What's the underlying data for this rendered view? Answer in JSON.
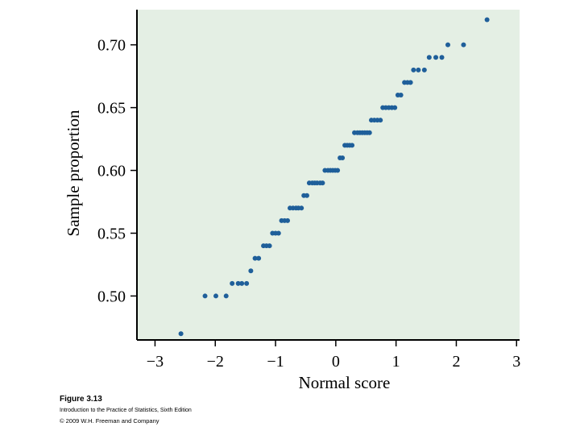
{
  "chart_data": {
    "type": "scatter",
    "xlabel": "Normal score",
    "ylabel": "Sample proportion",
    "xlim": [
      -3.3,
      3.05
    ],
    "ylim": [
      0.465,
      0.728
    ],
    "xticks": [
      -3,
      -2,
      -1,
      0,
      1,
      2,
      3
    ],
    "xtick_labels": [
      "−3",
      "−2",
      "−1",
      "0",
      "1",
      "2",
      "3"
    ],
    "yticks": [
      0.5,
      0.55,
      0.6,
      0.65,
      0.7
    ],
    "ytick_labels": [
      "0.50",
      "0.55",
      "0.60",
      "0.65",
      "0.70"
    ],
    "point_color": "#1f5f9a",
    "background_color": "#e4efe4",
    "points": [
      [
        -2.57,
        0.47
      ],
      [
        -2.17,
        0.5
      ],
      [
        -1.99,
        0.5
      ],
      [
        -1.82,
        0.5
      ],
      [
        -1.72,
        0.51
      ],
      [
        -1.62,
        0.51
      ],
      [
        -1.56,
        0.51
      ],
      [
        -1.48,
        0.51
      ],
      [
        -1.41,
        0.52
      ],
      [
        -1.34,
        0.53
      ],
      [
        -1.28,
        0.53
      ],
      [
        -1.2,
        0.54
      ],
      [
        -1.15,
        0.54
      ],
      [
        -1.1,
        0.54
      ],
      [
        -1.05,
        0.55
      ],
      [
        -1.0,
        0.55
      ],
      [
        -0.95,
        0.55
      ],
      [
        -0.9,
        0.56
      ],
      [
        -0.85,
        0.56
      ],
      [
        -0.8,
        0.56
      ],
      [
        -0.76,
        0.57
      ],
      [
        -0.71,
        0.57
      ],
      [
        -0.66,
        0.57
      ],
      [
        -0.62,
        0.57
      ],
      [
        -0.57,
        0.57
      ],
      [
        -0.53,
        0.58
      ],
      [
        -0.48,
        0.58
      ],
      [
        -0.44,
        0.59
      ],
      [
        -0.39,
        0.59
      ],
      [
        -0.35,
        0.59
      ],
      [
        -0.31,
        0.59
      ],
      [
        -0.26,
        0.59
      ],
      [
        -0.22,
        0.59
      ],
      [
        -0.18,
        0.6
      ],
      [
        -0.13,
        0.6
      ],
      [
        -0.09,
        0.6
      ],
      [
        -0.05,
        0.6
      ],
      [
        -0.01,
        0.6
      ],
      [
        0.03,
        0.6
      ],
      [
        0.07,
        0.61
      ],
      [
        0.11,
        0.61
      ],
      [
        0.15,
        0.62
      ],
      [
        0.19,
        0.62
      ],
      [
        0.23,
        0.62
      ],
      [
        0.27,
        0.62
      ],
      [
        0.31,
        0.63
      ],
      [
        0.36,
        0.63
      ],
      [
        0.4,
        0.63
      ],
      [
        0.44,
        0.63
      ],
      [
        0.48,
        0.63
      ],
      [
        0.52,
        0.63
      ],
      [
        0.56,
        0.63
      ],
      [
        0.59,
        0.64
      ],
      [
        0.64,
        0.64
      ],
      [
        0.69,
        0.64
      ],
      [
        0.74,
        0.64
      ],
      [
        0.78,
        0.65
      ],
      [
        0.83,
        0.65
      ],
      [
        0.88,
        0.65
      ],
      [
        0.93,
        0.65
      ],
      [
        0.98,
        0.65
      ],
      [
        1.03,
        0.66
      ],
      [
        1.08,
        0.66
      ],
      [
        1.14,
        0.67
      ],
      [
        1.19,
        0.67
      ],
      [
        1.24,
        0.67
      ],
      [
        1.29,
        0.68
      ],
      [
        1.37,
        0.68
      ],
      [
        1.47,
        0.68
      ],
      [
        1.55,
        0.69
      ],
      [
        1.66,
        0.69
      ],
      [
        1.76,
        0.69
      ],
      [
        1.86,
        0.7
      ],
      [
        2.12,
        0.7
      ],
      [
        2.51,
        0.72
      ]
    ]
  },
  "caption": {
    "figure_label": "Figure 3.13",
    "source": "Introduction to the Practice of Statistics, Sixth Edition",
    "copyright": "© 2009 W.H. Freeman and Company"
  }
}
